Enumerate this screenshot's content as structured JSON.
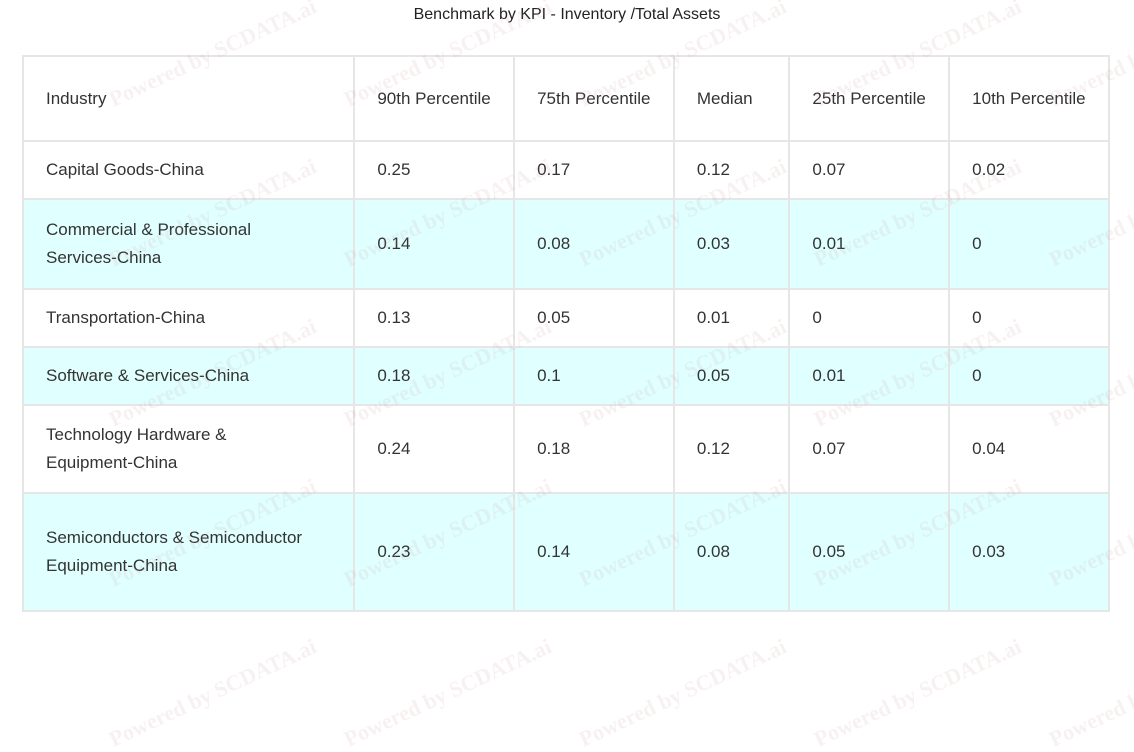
{
  "title": "Benchmark by KPI - Inventory  /Total Assets",
  "watermark": "Powered by SCDATA.ai",
  "colors": {
    "alt_row": "#e0ffff",
    "border": "#e6e6e6"
  },
  "headers": [
    "Industry",
    "90th Percentile",
    "75th Percentile",
    "Median",
    "25th Percentile",
    "10th Percentile"
  ],
  "rows": [
    [
      "Capital Goods-China",
      "0.25",
      "0.17",
      "0.12",
      "0.07",
      "0.02"
    ],
    [
      "Commercial & Professional Services-China",
      "0.14",
      "0.08",
      "0.03",
      "0.01",
      "0"
    ],
    [
      "Transportation-China",
      "0.13",
      "0.05",
      "0.01",
      "0",
      "0"
    ],
    [
      "Software & Services-China",
      "0.18",
      "0.1",
      "0.05",
      "0.01",
      "0"
    ],
    [
      "Technology Hardware & Equipment-China",
      "0.24",
      "0.18",
      "0.12",
      "0.07",
      "0.04"
    ],
    [
      "Semiconductors & Semiconductor Equipment-China",
      "0.23",
      "0.14",
      "0.08",
      "0.05",
      "0.03"
    ]
  ]
}
